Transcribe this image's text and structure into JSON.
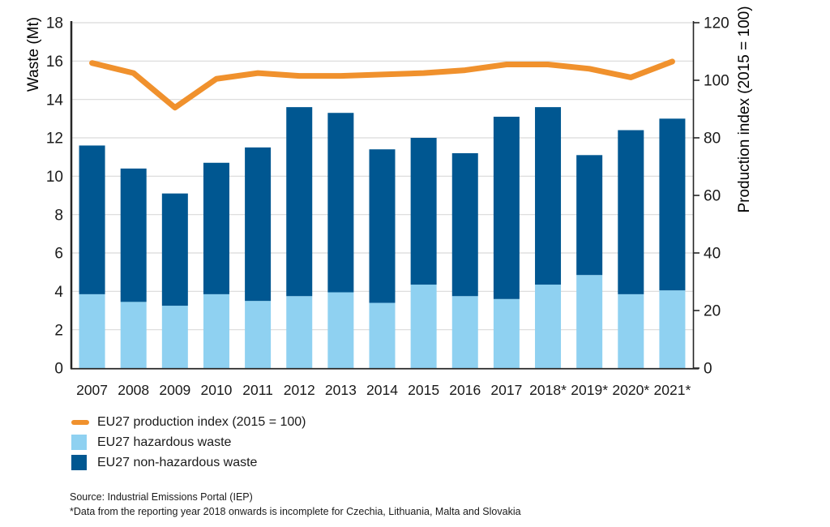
{
  "chart_data": {
    "type": "bar",
    "subtype": "stacked-bar-with-line-overlay",
    "title": "",
    "categories": [
      "2007",
      "2008",
      "2009",
      "2010",
      "2011",
      "2012",
      "2013",
      "2014",
      "2015",
      "2016",
      "2017",
      "2018*",
      "2019*",
      "2020*",
      "2021*"
    ],
    "series": [
      {
        "name": "EU27 hazardous waste",
        "type": "bar",
        "axis": "left",
        "color": "#8FD1F1",
        "values": [
          3.85,
          3.45,
          3.25,
          3.85,
          3.5,
          3.75,
          3.95,
          3.4,
          4.35,
          3.75,
          3.6,
          4.35,
          4.85,
          3.85,
          4.05
        ]
      },
      {
        "name": "EU27 non-hazardous waste",
        "type": "bar",
        "axis": "left",
        "color": "#005791",
        "values": [
          7.75,
          6.95,
          5.85,
          6.85,
          8.0,
          9.85,
          9.35,
          8.0,
          7.65,
          7.45,
          9.5,
          9.25,
          6.25,
          8.55,
          8.95
        ]
      },
      {
        "name": "EU27 production index (2015 = 100)",
        "type": "line",
        "axis": "right",
        "color": "#F0912D",
        "values": [
          106,
          102.5,
          90.5,
          100.5,
          102.5,
          101.5,
          101.5,
          102,
          102.5,
          103.5,
          105.5,
          105.5,
          104,
          101,
          106.5
        ]
      }
    ],
    "left_axis": {
      "label": "Waste (Mt)",
      "min": 0,
      "max": 18,
      "ticks": [
        0,
        2,
        4,
        6,
        8,
        10,
        12,
        14,
        16,
        18
      ]
    },
    "right_axis": {
      "label": "Production index (2015 = 100)",
      "min": 0,
      "max": 120,
      "ticks": [
        0,
        20,
        40,
        60,
        80,
        100,
        120
      ]
    },
    "grid": "horizontal",
    "legend_position": "bottom-left",
    "colors": {
      "grid": "#D9D9D9",
      "axis": "#262626",
      "text": "#1a1a1a"
    }
  },
  "legend": {
    "items": [
      {
        "label": "EU27 production index (2015 = 100)",
        "color": "#F0912D",
        "swatch": "line"
      },
      {
        "label": "EU27 hazardous waste",
        "color": "#8FD1F1",
        "swatch": "square"
      },
      {
        "label": "EU27 non-hazardous waste",
        "color": "#005791",
        "swatch": "square"
      }
    ]
  },
  "footer": {
    "source": "Source: Industrial Emissions Portal (IEP)",
    "note": "*Data from the reporting year 2018 onwards is incomplete for Czechia, Lithuania, Malta and Slovakia"
  }
}
